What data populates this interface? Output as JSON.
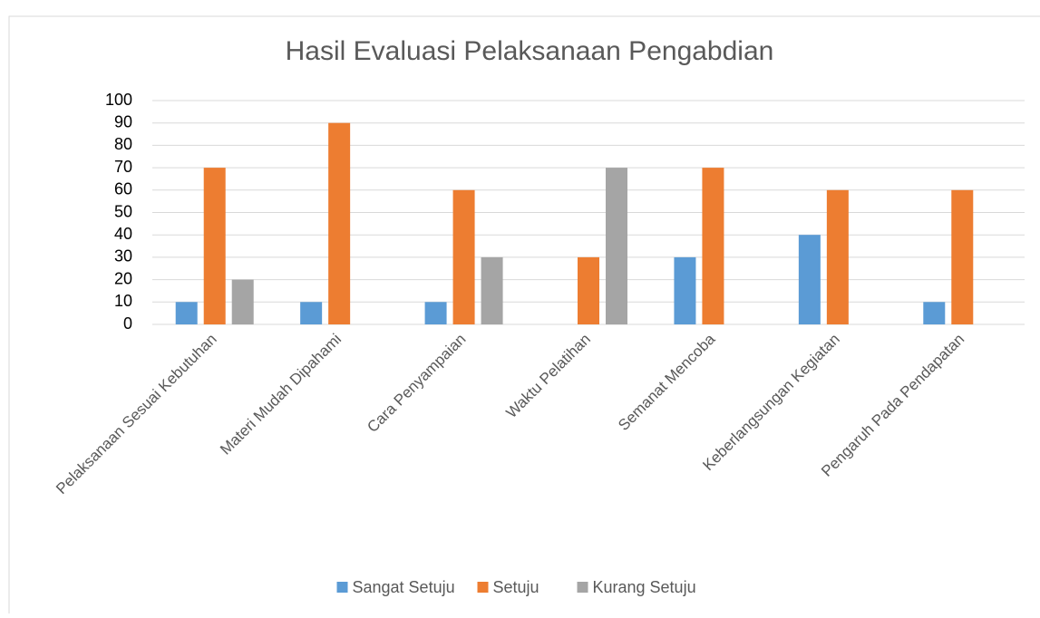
{
  "chart_data": {
    "type": "bar",
    "title": "Hasil Evaluasi Pelaksanaan Pengabdian",
    "categories": [
      "Pelaksanaan Sesuai Kebutuhan",
      "Materi Mudah Dipahami",
      "Cara Penyampaian",
      "Waktu Pelatihan",
      "Semanat Mencoba",
      "Keberlangsungan Kegiatan",
      "Pengaruh Pada Pendapatan"
    ],
    "series": [
      {
        "name": "Sangat Setuju",
        "color": "#5b9bd5",
        "values": [
          10,
          10,
          10,
          0,
          30,
          40,
          10
        ]
      },
      {
        "name": "Setuju",
        "color": "#ed7d31",
        "values": [
          70,
          90,
          60,
          30,
          70,
          60,
          60
        ]
      },
      {
        "name": "Kurang Setuju",
        "color": "#a5a5a5",
        "values": [
          20,
          0,
          30,
          70,
          0,
          0,
          0
        ]
      }
    ],
    "ylim": [
      0,
      100
    ],
    "yticks": [
      0,
      10,
      20,
      30,
      40,
      50,
      60,
      70,
      80,
      90,
      100
    ],
    "grid": true,
    "legend": "bottom"
  }
}
